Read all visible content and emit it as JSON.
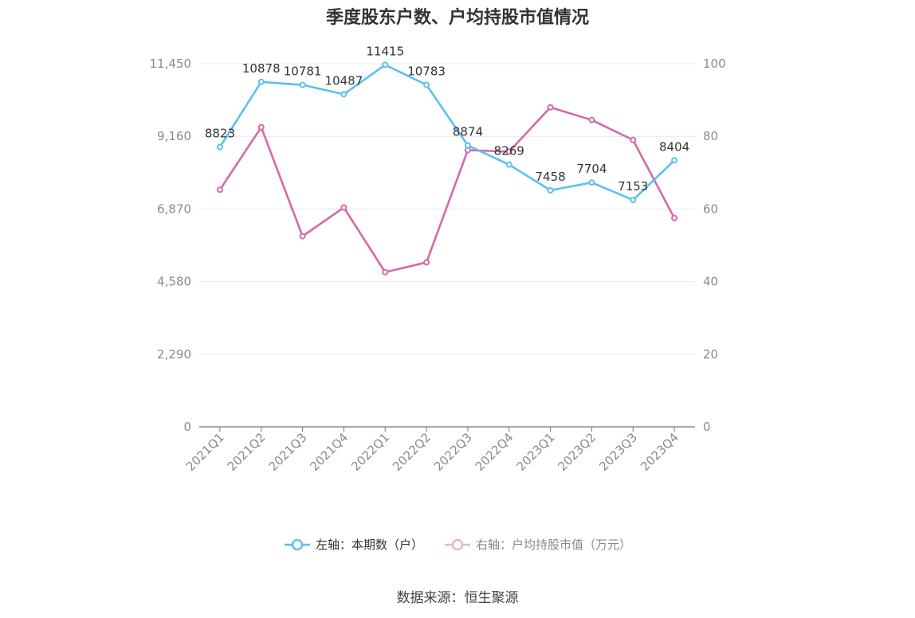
{
  "chart_data": {
    "type": "line",
    "title": "季度股东户数、户均持股市值情况",
    "categories": [
      "2021Q1",
      "2021Q2",
      "2021Q3",
      "2021Q4",
      "2022Q1",
      "2022Q2",
      "2022Q3",
      "2022Q4",
      "2023Q1",
      "2023Q2",
      "2023Q3",
      "2023Q4"
    ],
    "y_left": {
      "ticks": [
        "0",
        "2,290",
        "4,580",
        "6,870",
        "9,160",
        "11,450"
      ],
      "min": 0,
      "max": 11450
    },
    "y_right": {
      "ticks": [
        "0",
        "20",
        "40",
        "60",
        "80",
        "100"
      ],
      "min": 0,
      "max": 100
    },
    "series": [
      {
        "name": "左轴：本期数（户）",
        "axis": "left",
        "color": "#5bc0f0",
        "values": [
          8823,
          10878,
          10781,
          10487,
          11415,
          10783,
          8874,
          8269,
          7458,
          7704,
          7153,
          8404
        ],
        "labels": [
          "8823",
          "10878",
          "10781",
          "10487",
          "11415",
          "10783",
          "8874",
          "8269",
          "7458",
          "7704",
          "7153",
          "8404"
        ]
      },
      {
        "name": "右轴：户均持股市值（万元）",
        "axis": "right",
        "color": "#d469aa",
        "legend_state": "inactive",
        "values": [
          65.3,
          82.5,
          52.5,
          60.4,
          42.6,
          45.3,
          76.2,
          75.8,
          88.0,
          84.5,
          79.0,
          57.5
        ]
      }
    ],
    "grid": true,
    "legend_position": "bottom"
  },
  "source": "数据来源：恒生聚源"
}
